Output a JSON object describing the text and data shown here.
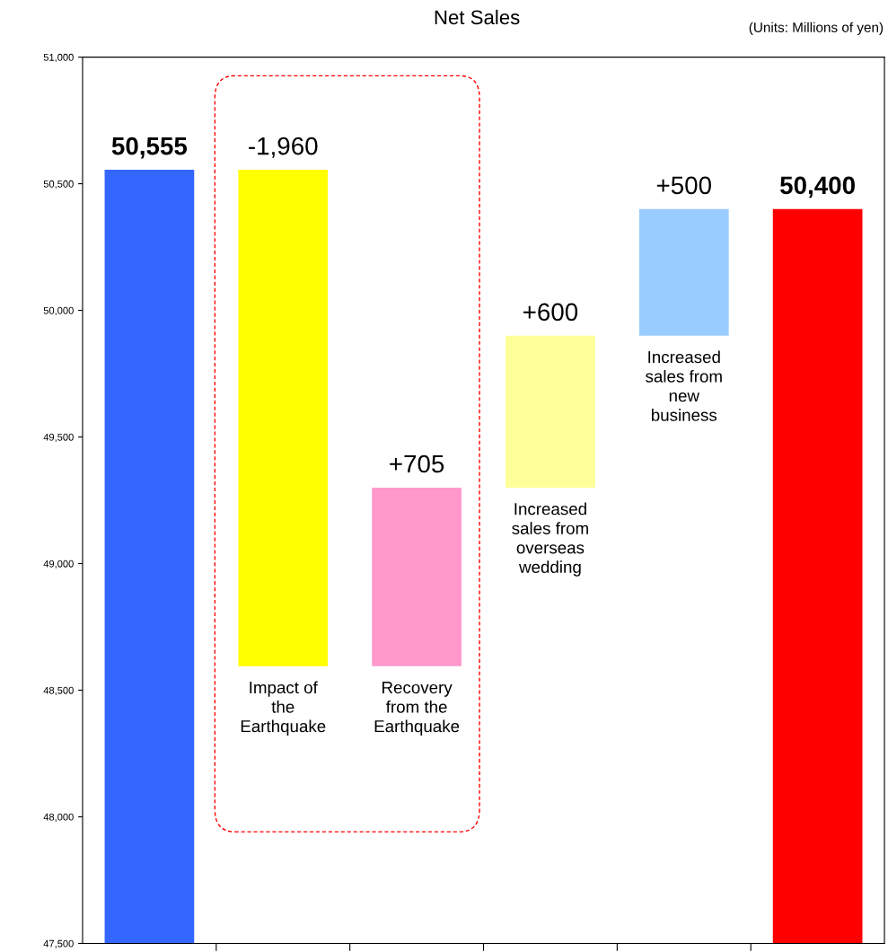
{
  "chart_data": {
    "type": "bar",
    "title": "Net Sales",
    "annotations": [
      "(Units: Millions of yen)"
    ],
    "categories": [
      null,
      "Impact of\nthe\nEarthquake",
      "Recovery\nfrom the\nEarthquake",
      "Increased\nsales from\noverseas\nwedding",
      "Increased\nsales from\nnew\nbusiness",
      null
    ],
    "base": [
      47500,
      50555,
      48595,
      49300,
      49900,
      47500
    ],
    "values": [
      3055,
      -1960,
      705,
      600,
      500,
      2900
    ],
    "colors": [
      "#3366ff",
      "#ffff00",
      "#ff99cc",
      "#ffff99",
      "#99ccff",
      "#ff0000"
    ],
    "value_labels": [
      "50,555",
      "-1,960",
      "+705",
      "+600",
      "+500",
      "50,400"
    ],
    "ylim": [
      47500,
      51000
    ],
    "yticks": [
      {
        "value": 47500,
        "label": "47,500"
      },
      {
        "value": 48000,
        "label": "48,000"
      },
      {
        "value": 48500,
        "label": "48,500"
      },
      {
        "value": 49000,
        "label": "49,000"
      },
      {
        "value": 49500,
        "label": "49,500"
      },
      {
        "value": 50000,
        "label": "50,000"
      },
      {
        "value": 50500,
        "label": "50,500"
      },
      {
        "value": 51000,
        "label": "51,000"
      }
    ],
    "tick_labels": "y",
    "grid": false
  }
}
